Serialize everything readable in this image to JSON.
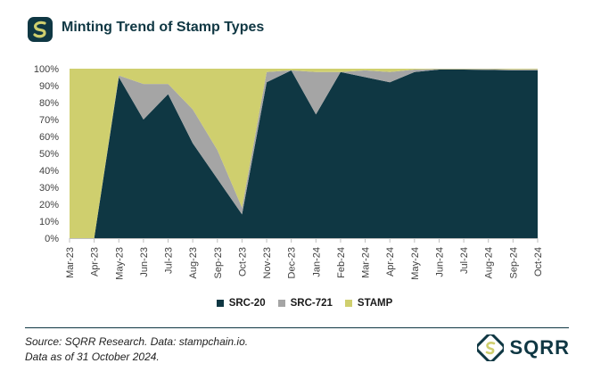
{
  "header": {
    "title": "Minting Trend of Stamp Types",
    "logo_icon": "sqrr-logo-icon"
  },
  "colors": {
    "src20": "#0f3743",
    "src721": "#a5a5a5",
    "stamp": "#cfcf6e",
    "brand": "#0f3743",
    "axis_text": "#404040"
  },
  "chart_data": {
    "type": "area",
    "stacking": "percent",
    "title": "Minting Trend of Stamp Types",
    "xlabel": "",
    "ylabel": "",
    "ylim": [
      0,
      100
    ],
    "yticks": [
      0,
      10,
      20,
      30,
      40,
      50,
      60,
      70,
      80,
      90,
      100
    ],
    "ytick_suffix": "%",
    "grid": false,
    "legend_position": "bottom",
    "categories": [
      "Mar-23",
      "Apr-23",
      "May-23",
      "Jun-23",
      "Jul-23",
      "Aug-23",
      "Sep-23",
      "Oct-23",
      "Nov-23",
      "Dec-23",
      "Jan-24",
      "Feb-24",
      "Mar-24",
      "Apr-24",
      "May-24",
      "Jun-24",
      "Jul-24",
      "Aug-24",
      "Sep-24",
      "Oct-24"
    ],
    "series": [
      {
        "name": "SRC-20",
        "values": [
          0,
          0,
          95,
          70,
          85,
          56,
          35,
          14,
          92,
          99,
          73,
          98,
          95,
          92,
          98,
          99.5,
          99.5,
          99.3,
          99,
          99
        ]
      },
      {
        "name": "SRC-721",
        "values": [
          0,
          0,
          1,
          21,
          6,
          20,
          17,
          4,
          6,
          0,
          25,
          0,
          4,
          6,
          1.5,
          0.3,
          0.3,
          0.5,
          0.6,
          0.7
        ]
      },
      {
        "name": "STAMP",
        "values": [
          100,
          100,
          4,
          9,
          9,
          24,
          48,
          82,
          2,
          1,
          2,
          2,
          1,
          2,
          0.5,
          0.2,
          0.2,
          0.2,
          0.4,
          0.3
        ]
      }
    ]
  },
  "legend": {
    "items": [
      {
        "label": "SRC-20"
      },
      {
        "label": "SRC-721"
      },
      {
        "label": "STAMP"
      }
    ]
  },
  "footer": {
    "source": "Source: SQRR Research. Data: stampchain.io.",
    "asof": "Data as of 31 October 2024."
  },
  "brand": {
    "name": "SQRR",
    "logo_icon": "sqrr-logo-icon"
  }
}
